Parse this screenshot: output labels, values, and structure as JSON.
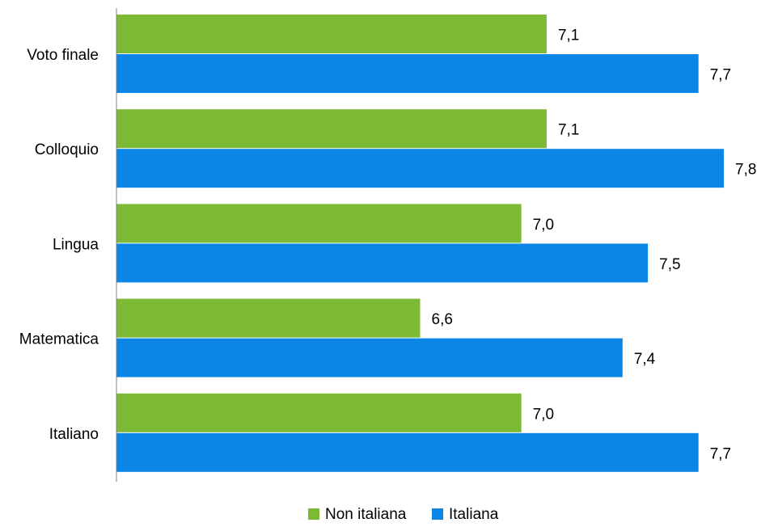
{
  "chart_data": {
    "type": "bar",
    "orientation": "horizontal",
    "categories": [
      "Voto finale",
      "Colloquio",
      "Lingua",
      "Matematica",
      "Italiano"
    ],
    "series": [
      {
        "name": "Non italiana",
        "color": "#7cba35",
        "values": [
          7.1,
          7.1,
          7.0,
          6.6,
          7.0
        ],
        "labels": [
          "7,1",
          "7,1",
          "7,0",
          "6,6",
          "7,0"
        ]
      },
      {
        "name": "Italiana",
        "color": "#0b86e6",
        "values": [
          7.7,
          7.8,
          7.5,
          7.4,
          7.7
        ],
        "labels": [
          "7,7",
          "7,8",
          "7,5",
          "7,4",
          "7,7"
        ]
      }
    ],
    "title": "",
    "xlabel": "",
    "ylabel": "",
    "xlim": [
      5.4,
      7.8
    ],
    "grid": false,
    "legend": "bottom"
  }
}
